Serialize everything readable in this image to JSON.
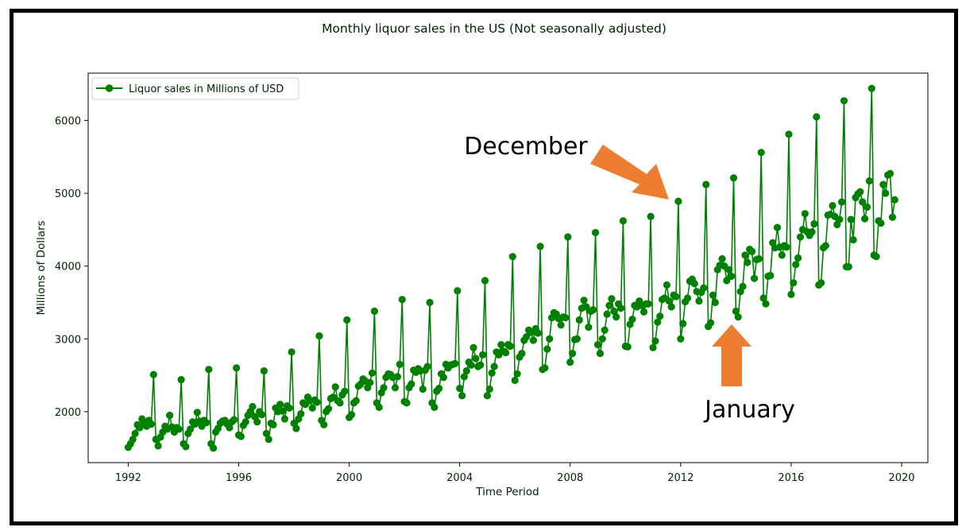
{
  "chart_data": {
    "type": "line",
    "title": "Monthly liquor sales in the US (Not seasonally adjusted)",
    "xlabel": "Time Period",
    "ylabel": "Millions of Dollars",
    "xlim": [
      1990.55,
      2020.95
    ],
    "ylim": [
      1300,
      6650
    ],
    "x_ticks": [
      1992,
      1996,
      2000,
      2004,
      2008,
      2012,
      2016,
      2020
    ],
    "y_ticks": [
      2000,
      3000,
      4000,
      5000,
      6000
    ],
    "grid": false,
    "legend": {
      "position": "top-left",
      "entries": [
        "Liquor sales in Millions of USD"
      ]
    },
    "series": [
      {
        "name": "Liquor sales in Millions of USD",
        "color": "#008000",
        "start_year": 1992,
        "start_month": 1,
        "values": [
          1510,
          1560,
          1620,
          1700,
          1820,
          1780,
          1900,
          1850,
          1800,
          1880,
          1830,
          2510,
          1620,
          1530,
          1650,
          1720,
          1800,
          1760,
          1950,
          1790,
          1720,
          1780,
          1760,
          2440,
          1560,
          1520,
          1700,
          1760,
          1860,
          1830,
          1990,
          1870,
          1800,
          1880,
          1850,
          2580,
          1560,
          1500,
          1720,
          1770,
          1840,
          1870,
          1880,
          1830,
          1780,
          1860,
          1890,
          2600,
          1680,
          1660,
          1810,
          1860,
          1950,
          2000,
          2070,
          1930,
          1860,
          2000,
          1960,
          2560,
          1700,
          1620,
          1840,
          1820,
          2050,
          2000,
          2100,
          2010,
          1900,
          2080,
          2050,
          2820,
          1840,
          1770,
          1900,
          1970,
          2120,
          2100,
          2200,
          2150,
          2050,
          2160,
          2130,
          3040,
          1880,
          1820,
          2000,
          2040,
          2180,
          2200,
          2340,
          2150,
          2120,
          2230,
          2280,
          3260,
          1920,
          1960,
          2120,
          2150,
          2350,
          2380,
          2450,
          2420,
          2330,
          2400,
          2530,
          3380,
          2120,
          2060,
          2260,
          2330,
          2470,
          2520,
          2510,
          2470,
          2330,
          2480,
          2650,
          3540,
          2140,
          2120,
          2330,
          2380,
          2570,
          2540,
          2590,
          2560,
          2310,
          2570,
          2620,
          3500,
          2120,
          2060,
          2280,
          2320,
          2520,
          2470,
          2650,
          2600,
          2640,
          2650,
          2660,
          3660,
          2320,
          2220,
          2480,
          2560,
          2680,
          2640,
          2880,
          2730,
          2620,
          2640,
          2780,
          3800,
          2220,
          2310,
          2530,
          2620,
          2820,
          2780,
          2920,
          2830,
          2810,
          2920,
          2900,
          4130,
          2430,
          2520,
          2750,
          2800,
          2980,
          3030,
          3120,
          3090,
          2980,
          3140,
          3080,
          4270,
          2580,
          2600,
          2860,
          3000,
          3290,
          3360,
          3340,
          3280,
          3190,
          3300,
          3290,
          4400,
          2680,
          2800,
          2990,
          3000,
          3260,
          3420,
          3530,
          3440,
          3160,
          3380,
          3400,
          4460,
          2920,
          2800,
          3000,
          3120,
          3340,
          3460,
          3550,
          3380,
          3300,
          3480,
          3420,
          4620,
          2900,
          2890,
          3200,
          3270,
          3460,
          3440,
          3520,
          3460,
          3370,
          3480,
          3480,
          4680,
          2880,
          2970,
          3230,
          3310,
          3540,
          3560,
          3740,
          3520,
          3440,
          3600,
          3580,
          4890,
          3000,
          3210,
          3510,
          3560,
          3790,
          3820,
          3760,
          3650,
          3520,
          3640,
          3700,
          5120,
          3170,
          3220,
          3600,
          3500,
          3950,
          4010,
          4100,
          4000,
          3800,
          3950,
          3860,
          5210,
          3380,
          3300,
          3650,
          3720,
          4150,
          4050,
          4230,
          4200,
          3830,
          4090,
          4100,
          5560,
          3560,
          3480,
          3860,
          3870,
          4320,
          4250,
          4530,
          4260,
          4150,
          4280,
          4260,
          5810,
          3610,
          3770,
          4020,
          4110,
          4400,
          4500,
          4720,
          4470,
          4420,
          4470,
          4580,
          6050,
          3740,
          3770,
          4250,
          4280,
          4700,
          4710,
          4830,
          4680,
          4570,
          4640,
          4880,
          6270,
          3990,
          3990,
          4640,
          4360,
          4940,
          4990,
          5020,
          4880,
          4650,
          4810,
          5170,
          6440,
          4150,
          4130,
          4620,
          4590,
          5120,
          5000,
          5250,
          5270,
          4670,
          4910
        ]
      }
    ],
    "annotations": [
      {
        "text": "December",
        "arrow": "down-right",
        "target": "December 2011",
        "color": "#ed7d31"
      },
      {
        "text": "January",
        "arrow": "up",
        "target": "January 2014",
        "color": "#ed7d31"
      }
    ]
  }
}
